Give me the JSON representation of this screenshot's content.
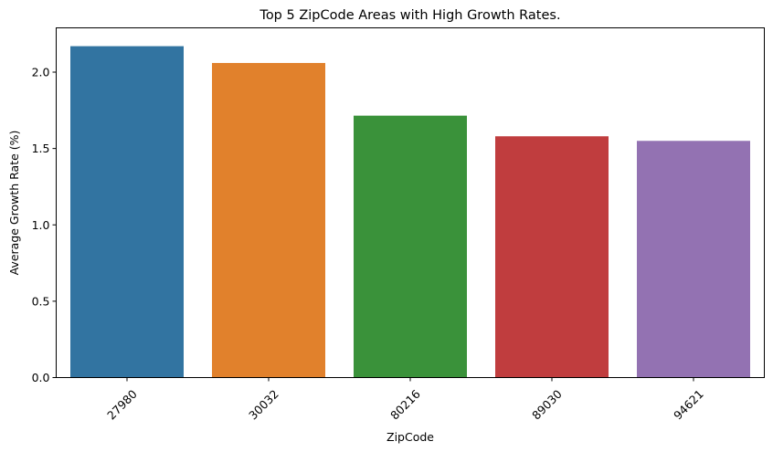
{
  "chart_data": {
    "type": "bar",
    "title": "Top 5 ZipCode Areas with High Growth Rates.",
    "xlabel": "ZipCode",
    "ylabel": "Average Growth Rate (%)",
    "categories": [
      "27980",
      "30032",
      "80216",
      "89030",
      "94621"
    ],
    "values": [
      2.17,
      2.06,
      1.715,
      1.58,
      1.55
    ],
    "colors": [
      "#3274a1",
      "#e1812c",
      "#3a923a",
      "#c03d3e",
      "#9372b2"
    ],
    "ylim": [
      0,
      2.29
    ],
    "yticks": [
      0.0,
      0.5,
      1.0,
      1.5,
      2.0
    ],
    "ytick_labels": [
      "0.0",
      "0.5",
      "1.0",
      "1.5",
      "2.0"
    ],
    "grid": false,
    "xtick_rotation": 45
  }
}
